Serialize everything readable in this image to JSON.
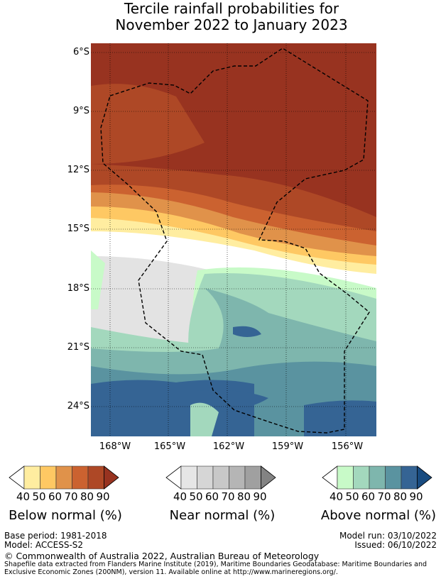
{
  "title": {
    "line1": "Tercile rainfall probabilities for",
    "line2": "November 2022 to January 2023"
  },
  "lat_ticks": [
    "6°S",
    "9°S",
    "12°S",
    "15°S",
    "18°S",
    "21°S",
    "24°S"
  ],
  "lon_ticks": [
    "168°W",
    "165°W",
    "162°W",
    "159°W",
    "156°W"
  ],
  "legends": [
    {
      "label": "Below normal (%)",
      "ticks": [
        "40",
        "50",
        "60",
        "70",
        "80",
        "90"
      ],
      "colors": [
        "#ffeda0",
        "#fec863",
        "#e0924a",
        "#cb6230",
        "#ae4826",
        "#983320"
      ]
    },
    {
      "label": "Near normal (%)",
      "ticks": [
        "40",
        "50",
        "60",
        "70",
        "80",
        "90"
      ],
      "colors": [
        "#e6e6e6",
        "#d6d6d6",
        "#c8c8c8",
        "#b5b5b5",
        "#a0a0a0",
        "#838383"
      ]
    },
    {
      "label": "Above normal (%)",
      "ticks": [
        "40",
        "50",
        "60",
        "70",
        "80",
        "90"
      ],
      "colors": [
        "#c8fac8",
        "#a3d8bd",
        "#7eb6ad",
        "#5a93a0",
        "#356494",
        "#184b80"
      ]
    }
  ],
  "footer": {
    "base_period": "Base period: 1981-2018",
    "model": "Model: ACCESS-S2",
    "model_run": "Model run: 03/10/2022",
    "issued": "Issued: 06/10/2022",
    "copyright": "© Commonwealth of Australia 2022, Australian Bureau of Meteorology",
    "shapefile1": "Shapefile data extracted from Flanders Marine Institute (2019), Maritime Boundaries Geodatabase: Maritime Boundaries and",
    "shapefile2": "Exclusive Economic Zones (200NM), version 11. Available online at http://www.marineregions.org/."
  }
}
